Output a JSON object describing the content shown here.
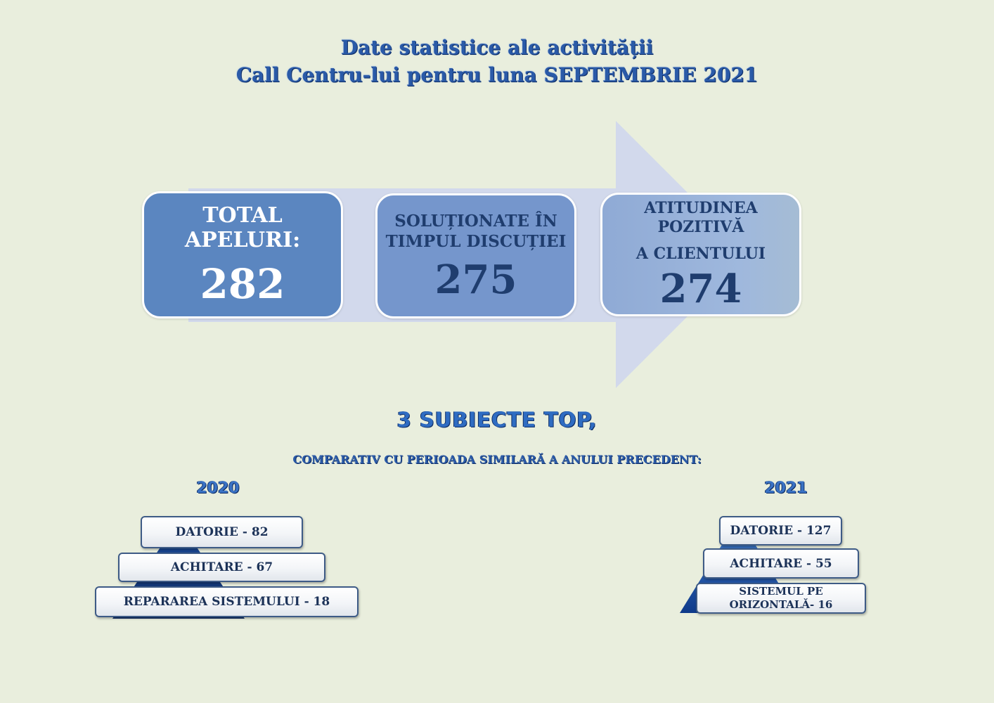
{
  "title": {
    "line1": "Date statistice ale activității",
    "line2": "Call Centru-lui pentru luna SEPTEMBRIE 2021"
  },
  "stats": {
    "total_label_1": "TOTAL",
    "total_label_2": "APELURI:",
    "total_value": "282",
    "resolved_label_1": "SOLUȚIONATE ÎN",
    "resolved_label_2": "TIMPUL DISCUȚIEI",
    "resolved_value": "275",
    "positive_label_1": "ATITUDINEA",
    "positive_label_2": "POZITIVĂ",
    "positive_label_3": "A  CLIENTULUI",
    "positive_value": "274"
  },
  "top_subjects": {
    "heading": "3 SUBIECTE TOP,",
    "subheading": "COMPARATIV CU PERIOADA SIMILARĂ A ANULUI PRECEDENT:",
    "year_2020": {
      "label": "2020",
      "items": [
        "DATORIE - 82",
        "ACHITARE -  67",
        "REPARAREA SISTEMULUI - 18"
      ]
    },
    "year_2021": {
      "label": "2021",
      "items": [
        "DATORIE - 127",
        "ACHITARE - 55",
        "SISTEMUL PE ORIZONTALĂ- 16"
      ]
    }
  },
  "colors": {
    "background": "#e9eedd",
    "title_blue": "#2a5aa8",
    "box_dark": "#5b86c0",
    "box_mid": "#7596cc",
    "box_light": "#9fb8dd",
    "arrow": "#d2d9ec"
  }
}
